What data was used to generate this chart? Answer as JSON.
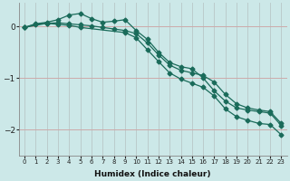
{
  "xlabel": "Humidex (Indice chaleur)",
  "bg_color": "#cce8e8",
  "grid_color": "#aacccc",
  "line_color": "#1a6b5a",
  "xlim": [
    -0.5,
    23.5
  ],
  "ylim": [
    -2.5,
    0.45
  ],
  "yticks": [
    0,
    -1,
    -2
  ],
  "xticks": [
    0,
    1,
    2,
    3,
    4,
    5,
    6,
    7,
    8,
    9,
    10,
    11,
    12,
    13,
    14,
    15,
    16,
    17,
    18,
    19,
    20,
    21,
    22,
    23
  ],
  "series1": {
    "x": [
      0,
      1,
      2,
      3,
      4,
      5,
      6,
      7,
      8,
      9,
      10,
      11,
      12,
      13,
      14,
      15,
      16,
      17,
      18,
      19,
      20,
      21,
      22,
      23
    ],
    "y": [
      -0.02,
      0.05,
      0.08,
      0.13,
      0.22,
      0.25,
      0.15,
      0.08,
      0.1,
      0.13,
      -0.08,
      -0.25,
      -0.5,
      -0.7,
      -0.78,
      -0.82,
      -1.0,
      -1.25,
      -1.45,
      -1.58,
      -1.62,
      -1.65,
      -1.68,
      -1.92
    ]
  },
  "series2": {
    "x": [
      0,
      1,
      2,
      3,
      4,
      5,
      6,
      7,
      8,
      9,
      10,
      11,
      12,
      13,
      14,
      15,
      16,
      17,
      18,
      19,
      20,
      21,
      22,
      23
    ],
    "y": [
      -0.02,
      0.04,
      0.06,
      0.07,
      0.05,
      0.03,
      0.01,
      -0.02,
      -0.05,
      -0.08,
      -0.14,
      -0.32,
      -0.55,
      -0.75,
      -0.85,
      -0.9,
      -0.95,
      -1.08,
      -1.32,
      -1.5,
      -1.58,
      -1.62,
      -1.65,
      -1.88
    ]
  },
  "series3": {
    "x": [
      0,
      2,
      3,
      4,
      5,
      9,
      10,
      11,
      12,
      13,
      14,
      15,
      16,
      17,
      18,
      19,
      20,
      21,
      22,
      23
    ],
    "y": [
      -0.02,
      0.06,
      0.04,
      0.02,
      -0.02,
      -0.12,
      -0.22,
      -0.45,
      -0.68,
      -0.9,
      -1.02,
      -1.1,
      -1.18,
      -1.35,
      -1.6,
      -1.75,
      -1.82,
      -1.88,
      -1.9,
      -2.1
    ]
  }
}
